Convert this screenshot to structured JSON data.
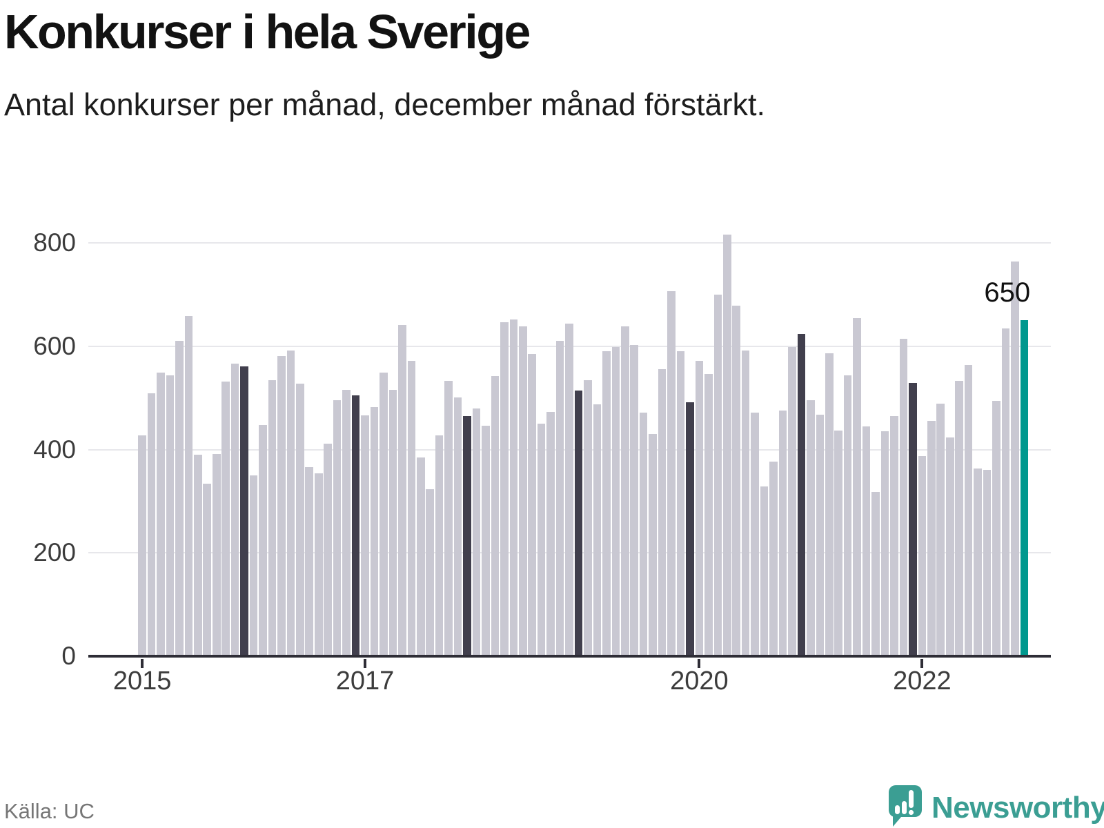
{
  "header": {
    "title": "Konkurser i hela Sverige",
    "subtitle": "Antal konkurser per månad, december månad förstärkt."
  },
  "chart_data": {
    "type": "bar",
    "title": "Konkurser i hela Sverige",
    "subtitle": "Antal konkurser per månad, december månad förstärkt.",
    "xlabel": "",
    "ylabel": "",
    "ylim": [
      0,
      860
    ],
    "yticks": [
      0,
      200,
      400,
      600,
      800
    ],
    "xticks": [
      "2015",
      "2017",
      "2020",
      "2022"
    ],
    "grid": "horizontal",
    "legend": "none",
    "x": [
      "2015-01",
      "2015-02",
      "2015-03",
      "2015-04",
      "2015-05",
      "2015-06",
      "2015-07",
      "2015-08",
      "2015-09",
      "2015-10",
      "2015-11",
      "2015-12",
      "2016-01",
      "2016-02",
      "2016-03",
      "2016-04",
      "2016-05",
      "2016-06",
      "2016-07",
      "2016-08",
      "2016-09",
      "2016-10",
      "2016-11",
      "2016-12",
      "2017-01",
      "2017-02",
      "2017-03",
      "2017-04",
      "2017-05",
      "2017-06",
      "2017-07",
      "2017-08",
      "2017-09",
      "2017-10",
      "2017-11",
      "2017-12",
      "2018-01",
      "2018-02",
      "2018-03",
      "2018-04",
      "2018-05",
      "2018-06",
      "2018-07",
      "2018-08",
      "2018-09",
      "2018-10",
      "2018-11",
      "2018-12",
      "2019-01",
      "2019-02",
      "2019-03",
      "2019-04",
      "2019-05",
      "2019-06",
      "2019-07",
      "2019-08",
      "2019-09",
      "2019-10",
      "2019-11",
      "2019-12",
      "2020-01",
      "2020-02",
      "2020-03",
      "2020-04",
      "2020-05",
      "2020-06",
      "2020-07",
      "2020-08",
      "2020-09",
      "2020-10",
      "2020-11",
      "2020-12",
      "2021-01",
      "2021-02",
      "2021-03",
      "2021-04",
      "2021-05",
      "2021-06",
      "2021-07",
      "2021-08",
      "2021-09",
      "2021-10",
      "2021-11",
      "2021-12",
      "2022-01",
      "2022-02",
      "2022-03",
      "2022-04",
      "2022-05",
      "2022-06",
      "2022-07",
      "2022-08",
      "2022-09",
      "2022-10",
      "2022-11",
      "2022-12"
    ],
    "values": [
      428,
      509,
      549,
      543,
      611,
      659,
      390,
      334,
      392,
      531,
      566,
      561,
      350,
      448,
      534,
      581,
      592,
      527,
      366,
      354,
      412,
      495,
      516,
      505,
      466,
      482,
      549,
      515,
      641,
      571,
      384,
      323,
      427,
      533,
      501,
      465,
      480,
      446,
      542,
      647,
      652,
      638,
      585,
      450,
      473,
      611,
      644,
      514,
      534,
      487,
      590,
      598,
      638,
      603,
      471,
      430,
      556,
      706,
      591,
      491,
      571,
      546,
      700,
      816,
      678,
      592,
      472,
      329,
      377,
      476,
      599,
      624,
      496,
      468,
      586,
      437,
      543,
      655,
      445,
      318,
      436,
      465,
      615,
      529,
      388,
      455,
      489,
      423,
      533,
      564,
      363,
      361,
      494,
      634,
      764,
      650
    ],
    "annotation": {
      "text": "650",
      "month": "2022-12"
    },
    "highlight_rule": "december bars emphasized dark; latest bar (2022-12) teal"
  },
  "colors": {
    "bar_default": "#c9c8d2",
    "bar_december": "#413f4d",
    "bar_latest": "#00988e",
    "gridline": "#e7e7eb",
    "axis": "#2e2d36",
    "brand_teal": "#3b9e93"
  },
  "footer": {
    "source": "Källa: UC",
    "brand": "Newsworthy"
  }
}
